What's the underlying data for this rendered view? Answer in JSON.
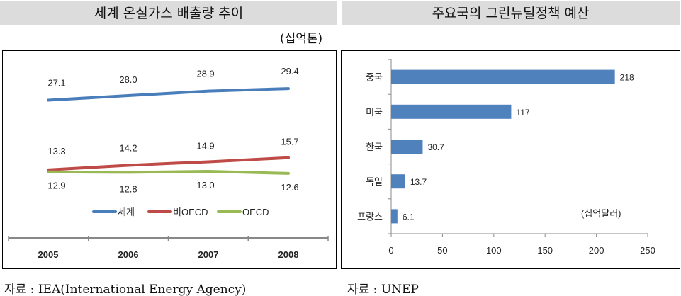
{
  "left": {
    "title": "세계 온실가스 배출량 추이",
    "unit": "(십억톤)",
    "source": "자료 : IEA(International Energy Agency)"
  },
  "right": {
    "title": "주요국의 그린뉴딜정책 예산",
    "source": "자료 : UNEP"
  },
  "chart_data": [
    {
      "type": "line",
      "categories": [
        "2005",
        "2006",
        "2007",
        "2008"
      ],
      "series": [
        {
          "name": "세계",
          "color": "#4a7ebb",
          "values": [
            27.1,
            28.0,
            28.9,
            29.4
          ]
        },
        {
          "name": "비OECD",
          "color": "#be4b48",
          "values": [
            13.3,
            14.2,
            14.9,
            15.7
          ]
        },
        {
          "name": "OECD",
          "color": "#98b954",
          "values": [
            12.9,
            12.8,
            13.0,
            12.6
          ]
        }
      ],
      "legend": "bottom",
      "grid": false,
      "ylabel": "(십억톤)"
    },
    {
      "type": "bar",
      "orientation": "horizontal",
      "categories": [
        "중국",
        "미국",
        "한국",
        "독일",
        "프랑스"
      ],
      "values": [
        218,
        117,
        30.7,
        13.7,
        6.1
      ],
      "color": "#4f81bd",
      "xlim": [
        0,
        250
      ],
      "xticks": [
        "0",
        "50",
        "100",
        "150",
        "200",
        "250"
      ],
      "annotation": "(십억달러)",
      "grid": false
    }
  ]
}
